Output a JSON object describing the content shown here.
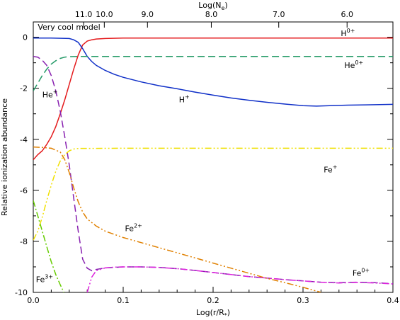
{
  "chart_data": {
    "type": "line",
    "xlabel": "Log(r/R*)",
    "xlabel_top": "Log(Ne)",
    "ylabel": "Relative ionization abundance",
    "xlim": [
      0.0,
      0.4
    ],
    "ylim": [
      -10,
      0.6
    ],
    "x_ticks": [
      {
        "value": 0.0,
        "label": "0.0"
      },
      {
        "value": 0.1,
        "label": "0.1"
      },
      {
        "value": 0.2,
        "label": "0.2"
      },
      {
        "value": 0.3,
        "label": "0.3"
      },
      {
        "value": 0.4,
        "label": "0.4"
      }
    ],
    "y_ticks": [
      {
        "value": 0,
        "label": "0"
      },
      {
        "value": -2,
        "label": "-2"
      },
      {
        "value": -4,
        "label": "-4"
      },
      {
        "value": -6,
        "label": "-6"
      },
      {
        "value": -8,
        "label": "-8"
      },
      {
        "value": -10,
        "label": "-10"
      }
    ],
    "top_ticks": [
      {
        "x": 0.056,
        "label": "11.0"
      },
      {
        "x": 0.079,
        "label": "10.0"
      },
      {
        "x": 0.127,
        "label": "9.0"
      },
      {
        "x": 0.198,
        "label": "8.0"
      },
      {
        "x": 0.273,
        "label": "7.0"
      },
      {
        "x": 0.349,
        "label": "6.0"
      }
    ],
    "annotations": [
      {
        "text": "Very cool model",
        "x": 0.005,
        "y": 0.3
      },
      {
        "text": "H",
        "sup": "0+",
        "x": 0.342,
        "y": 0.05
      },
      {
        "text": "He",
        "sup": "0+",
        "x": 0.346,
        "y": -1.2
      },
      {
        "text": "H",
        "sup": "+",
        "x": 0.162,
        "y": -2.55
      },
      {
        "text": "He",
        "sup": "+",
        "x": 0.01,
        "y": -2.35
      },
      {
        "text": "Fe",
        "sup": "+",
        "x": 0.323,
        "y": -5.3
      },
      {
        "text": "Fe",
        "sup": "2+",
        "x": 0.102,
        "y": -7.6
      },
      {
        "text": "Fe",
        "sup": "0+",
        "x": 0.355,
        "y": -9.35
      },
      {
        "text": "Fe",
        "sup": "3+",
        "x": 0.003,
        "y": -9.6
      }
    ],
    "series": [
      {
        "name": "H0+",
        "color": "#e41a1c",
        "dash": "solid",
        "points": [
          [
            0.0,
            -4.8
          ],
          [
            0.005,
            -4.6
          ],
          [
            0.01,
            -4.45
          ],
          [
            0.015,
            -4.2
          ],
          [
            0.02,
            -3.9
          ],
          [
            0.025,
            -3.5
          ],
          [
            0.03,
            -3.0
          ],
          [
            0.035,
            -2.45
          ],
          [
            0.04,
            -1.85
          ],
          [
            0.045,
            -1.25
          ],
          [
            0.05,
            -0.7
          ],
          [
            0.055,
            -0.3
          ],
          [
            0.06,
            -0.15
          ],
          [
            0.065,
            -0.1
          ],
          [
            0.07,
            -0.07
          ],
          [
            0.08,
            -0.05
          ],
          [
            0.1,
            -0.03
          ],
          [
            0.15,
            -0.03
          ],
          [
            0.2,
            -0.03
          ],
          [
            0.3,
            -0.03
          ],
          [
            0.4,
            -0.03
          ]
        ]
      },
      {
        "name": "H+",
        "color": "#1030c8",
        "dash": "solid",
        "points": [
          [
            0.0,
            -0.03
          ],
          [
            0.02,
            -0.03
          ],
          [
            0.04,
            -0.05
          ],
          [
            0.045,
            -0.1
          ],
          [
            0.05,
            -0.2
          ],
          [
            0.055,
            -0.45
          ],
          [
            0.06,
            -0.75
          ],
          [
            0.065,
            -0.95
          ],
          [
            0.07,
            -1.1
          ],
          [
            0.08,
            -1.3
          ],
          [
            0.09,
            -1.45
          ],
          [
            0.1,
            -1.57
          ],
          [
            0.12,
            -1.75
          ],
          [
            0.14,
            -1.9
          ],
          [
            0.16,
            -2.02
          ],
          [
            0.18,
            -2.15
          ],
          [
            0.2,
            -2.27
          ],
          [
            0.22,
            -2.38
          ],
          [
            0.24,
            -2.47
          ],
          [
            0.26,
            -2.55
          ],
          [
            0.28,
            -2.62
          ],
          [
            0.3,
            -2.68
          ],
          [
            0.315,
            -2.7
          ],
          [
            0.33,
            -2.68
          ],
          [
            0.35,
            -2.66
          ],
          [
            0.37,
            -2.65
          ],
          [
            0.4,
            -2.63
          ]
        ]
      },
      {
        "name": "He0+",
        "color": "#229966",
        "dash": "dashed",
        "points": [
          [
            0.0,
            -2.1
          ],
          [
            0.005,
            -1.8
          ],
          [
            0.01,
            -1.5
          ],
          [
            0.015,
            -1.25
          ],
          [
            0.02,
            -1.05
          ],
          [
            0.025,
            -0.92
          ],
          [
            0.03,
            -0.83
          ],
          [
            0.035,
            -0.78
          ],
          [
            0.04,
            -0.76
          ],
          [
            0.05,
            -0.75
          ],
          [
            0.1,
            -0.75
          ],
          [
            0.2,
            -0.75
          ],
          [
            0.3,
            -0.75
          ],
          [
            0.4,
            -0.75
          ]
        ]
      },
      {
        "name": "He+",
        "color": "#8820b0",
        "dash": "dashed",
        "points": [
          [
            0.0,
            -0.75
          ],
          [
            0.005,
            -0.78
          ],
          [
            0.01,
            -0.9
          ],
          [
            0.015,
            -1.1
          ],
          [
            0.02,
            -1.5
          ],
          [
            0.025,
            -2.1
          ],
          [
            0.03,
            -2.9
          ],
          [
            0.035,
            -3.9
          ],
          [
            0.04,
            -5.0
          ],
          [
            0.045,
            -6.3
          ],
          [
            0.05,
            -7.6
          ],
          [
            0.055,
            -8.7
          ],
          [
            0.06,
            -9.05
          ],
          [
            0.065,
            -9.15
          ],
          [
            0.07,
            -9.1
          ],
          [
            0.08,
            -9.04
          ],
          [
            0.09,
            -9.02
          ],
          [
            0.1,
            -9.0
          ],
          [
            0.12,
            -9.0
          ],
          [
            0.14,
            -9.02
          ],
          [
            0.16,
            -9.07
          ],
          [
            0.18,
            -9.14
          ],
          [
            0.2,
            -9.22
          ],
          [
            0.22,
            -9.3
          ],
          [
            0.24,
            -9.38
          ],
          [
            0.26,
            -9.44
          ],
          [
            0.28,
            -9.5
          ],
          [
            0.3,
            -9.55
          ],
          [
            0.32,
            -9.6
          ],
          [
            0.34,
            -9.62
          ],
          [
            0.36,
            -9.6
          ],
          [
            0.38,
            -9.62
          ],
          [
            0.4,
            -9.66
          ]
        ]
      },
      {
        "name": "Fe0+",
        "color": "#dd22dd",
        "dash": "dashdotdot",
        "points": [
          [
            0.06,
            -10.0
          ],
          [
            0.065,
            -9.4
          ],
          [
            0.07,
            -9.15
          ],
          [
            0.08,
            -9.04
          ],
          [
            0.09,
            -9.01
          ],
          [
            0.1,
            -9.0
          ],
          [
            0.12,
            -9.0
          ],
          [
            0.14,
            -9.02
          ],
          [
            0.16,
            -9.07
          ],
          [
            0.18,
            -9.14
          ],
          [
            0.2,
            -9.22
          ],
          [
            0.22,
            -9.3
          ],
          [
            0.24,
            -9.38
          ],
          [
            0.26,
            -9.44
          ],
          [
            0.28,
            -9.5
          ],
          [
            0.3,
            -9.55
          ],
          [
            0.32,
            -9.6
          ],
          [
            0.34,
            -9.63
          ],
          [
            0.36,
            -9.61
          ],
          [
            0.38,
            -9.63
          ],
          [
            0.4,
            -9.67
          ]
        ]
      },
      {
        "name": "Fe+",
        "color": "#f0e000",
        "dash": "dashdotdot",
        "points": [
          [
            0.0,
            -7.95
          ],
          [
            0.005,
            -7.6
          ],
          [
            0.01,
            -7.05
          ],
          [
            0.015,
            -6.4
          ],
          [
            0.02,
            -5.8
          ],
          [
            0.025,
            -5.25
          ],
          [
            0.03,
            -4.85
          ],
          [
            0.035,
            -4.6
          ],
          [
            0.04,
            -4.45
          ],
          [
            0.045,
            -4.38
          ],
          [
            0.05,
            -4.36
          ],
          [
            0.1,
            -4.35
          ],
          [
            0.2,
            -4.35
          ],
          [
            0.3,
            -4.35
          ],
          [
            0.4,
            -4.35
          ]
        ]
      },
      {
        "name": "Fe2+",
        "color": "#e08000",
        "dash": "dashdotdot",
        "points": [
          [
            0.0,
            -4.3
          ],
          [
            0.01,
            -4.32
          ],
          [
            0.02,
            -4.35
          ],
          [
            0.03,
            -4.5
          ],
          [
            0.035,
            -4.8
          ],
          [
            0.04,
            -5.3
          ],
          [
            0.045,
            -5.9
          ],
          [
            0.05,
            -6.45
          ],
          [
            0.055,
            -6.85
          ],
          [
            0.06,
            -7.12
          ],
          [
            0.07,
            -7.4
          ],
          [
            0.08,
            -7.6
          ],
          [
            0.1,
            -7.85
          ],
          [
            0.12,
            -8.05
          ],
          [
            0.14,
            -8.25
          ],
          [
            0.16,
            -8.45
          ],
          [
            0.18,
            -8.65
          ],
          [
            0.2,
            -8.85
          ],
          [
            0.22,
            -9.05
          ],
          [
            0.24,
            -9.25
          ],
          [
            0.26,
            -9.45
          ],
          [
            0.28,
            -9.62
          ],
          [
            0.3,
            -9.8
          ],
          [
            0.315,
            -9.95
          ],
          [
            0.32,
            -10.0
          ]
        ]
      },
      {
        "name": "Fe3+",
        "color": "#66cc00",
        "dash": "dashdot",
        "points": [
          [
            0.0,
            -6.4
          ],
          [
            0.005,
            -7.0
          ],
          [
            0.01,
            -7.6
          ],
          [
            0.015,
            -8.2
          ],
          [
            0.02,
            -8.8
          ],
          [
            0.025,
            -9.3
          ],
          [
            0.03,
            -9.7
          ],
          [
            0.034,
            -10.0
          ]
        ]
      }
    ]
  }
}
